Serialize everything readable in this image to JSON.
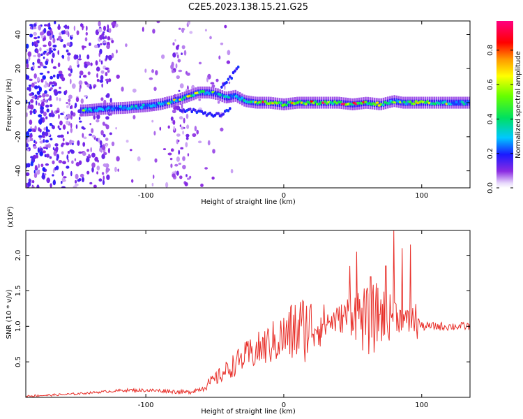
{
  "title": "C2E5.2023.138.15.21.G25",
  "chart_data": [
    {
      "type": "heatmap",
      "xlabel": "Height of straight line (km)",
      "ylabel": "Frequency (Hz)",
      "xlim": [
        -187,
        135
      ],
      "ylim": [
        -50,
        48
      ],
      "xticks": [
        -100,
        0,
        100
      ],
      "yticks": [
        -40,
        -20,
        0,
        20,
        40
      ],
      "colorbar": {
        "label": "Normalized spectral amplitude",
        "range": [
          0.0,
          0.97
        ],
        "ticks": [
          0.0,
          0.2,
          0.4,
          0.6,
          0.8
        ],
        "tick_labels": [
          "0.0",
          "0.2",
          "0.4",
          "0.6",
          "0.8"
        ]
      },
      "main_band": [
        {
          "x": -143,
          "f": -4.5,
          "a": 0.45
        },
        {
          "x": -130,
          "f": -3.5,
          "a": 0.4
        },
        {
          "x": -115,
          "f": -3,
          "a": 0.45
        },
        {
          "x": -100,
          "f": -2,
          "a": 0.5
        },
        {
          "x": -90,
          "f": -1,
          "a": 0.5
        },
        {
          "x": -80,
          "f": 1,
          "a": 0.55
        },
        {
          "x": -72,
          "f": 3,
          "a": 0.55
        },
        {
          "x": -62,
          "f": 6,
          "a": 0.6
        },
        {
          "x": -54,
          "f": 6,
          "a": 0.55
        },
        {
          "x": -48,
          "f": 5,
          "a": 0.5
        },
        {
          "x": -42,
          "f": 3,
          "a": 0.5
        },
        {
          "x": -35,
          "f": 4,
          "a": 0.5
        },
        {
          "x": -28,
          "f": 1,
          "a": 0.6
        },
        {
          "x": -20,
          "f": 0,
          "a": 0.7
        },
        {
          "x": -10,
          "f": 0,
          "a": 0.8
        },
        {
          "x": 0,
          "f": -1,
          "a": 0.75
        },
        {
          "x": 10,
          "f": 0,
          "a": 0.75
        },
        {
          "x": 20,
          "f": 0,
          "a": 0.75
        },
        {
          "x": 30,
          "f": 0,
          "a": 0.8
        },
        {
          "x": 40,
          "f": 0,
          "a": 0.8
        },
        {
          "x": 50,
          "f": -1,
          "a": 0.8
        },
        {
          "x": 60,
          "f": 0,
          "a": 0.75
        },
        {
          "x": 70,
          "f": -1,
          "a": 0.7
        },
        {
          "x": 80,
          "f": 1,
          "a": 0.6
        },
        {
          "x": 86,
          "f": 0,
          "a": 0.55
        },
        {
          "x": 95,
          "f": 0,
          "a": 0.8
        },
        {
          "x": 110,
          "f": 0,
          "a": 0.55
        },
        {
          "x": 125,
          "f": 0,
          "a": 0.5
        },
        {
          "x": 134,
          "f": 0,
          "a": 0.5
        }
      ],
      "lower_branch": [
        {
          "x": -75,
          "f": -4
        },
        {
          "x": -65,
          "f": -5
        },
        {
          "x": -55,
          "f": -7
        },
        {
          "x": -45,
          "f": -7
        },
        {
          "x": -38,
          "f": -3
        }
      ],
      "upper_branch": [
        {
          "x": -45,
          "f": 10
        },
        {
          "x": -38,
          "f": 15
        },
        {
          "x": -32,
          "f": 22
        }
      ]
    },
    {
      "type": "line",
      "xlabel": "Height of straight line (km)",
      "ylabel": "SNR (10 * v/v)",
      "y_multiplier": "(x10⁴)",
      "xlim": [
        -187,
        135
      ],
      "ylim": [
        0,
        2.35
      ],
      "xticks": [
        -100,
        0,
        100
      ],
      "yticks": [
        0.5,
        1.0,
        1.5,
        2.0
      ],
      "ytick_labels": [
        "0.5",
        "1.0",
        "1.5",
        "2.0"
      ],
      "color": "#e8302a",
      "series": [
        {
          "x": [
            -187,
            -170,
            -150,
            -130,
            -115,
            -100,
            -85,
            -70,
            -60,
            -50,
            -40,
            -30,
            -20,
            -10,
            0,
            10,
            20,
            30,
            40,
            45,
            50,
            55,
            60,
            65,
            70,
            75,
            80,
            85,
            90,
            95,
            100,
            110,
            120,
            135
          ],
          "y": [
            0.02,
            0.03,
            0.05,
            0.08,
            0.1,
            0.1,
            0.09,
            0.07,
            0.12,
            0.25,
            0.4,
            0.55,
            0.65,
            0.75,
            0.85,
            0.95,
            1.0,
            1.05,
            1.1,
            1.15,
            1.2,
            1.15,
            1.05,
            1.1,
            1.2,
            1.1,
            1.2,
            1.1,
            1.05,
            1.1,
            1.0,
            1.0,
            1.0,
            1.0
          ]
        }
      ],
      "peaks": [
        {
          "x": 48,
          "y": 1.85
        },
        {
          "x": 53,
          "y": 2.05
        },
        {
          "x": 63,
          "y": 1.7
        },
        {
          "x": 74,
          "y": 1.85
        },
        {
          "x": 80,
          "y": 2.35
        },
        {
          "x": 86,
          "y": 2.1
        },
        {
          "x": 92,
          "y": 2.15
        }
      ]
    }
  ]
}
